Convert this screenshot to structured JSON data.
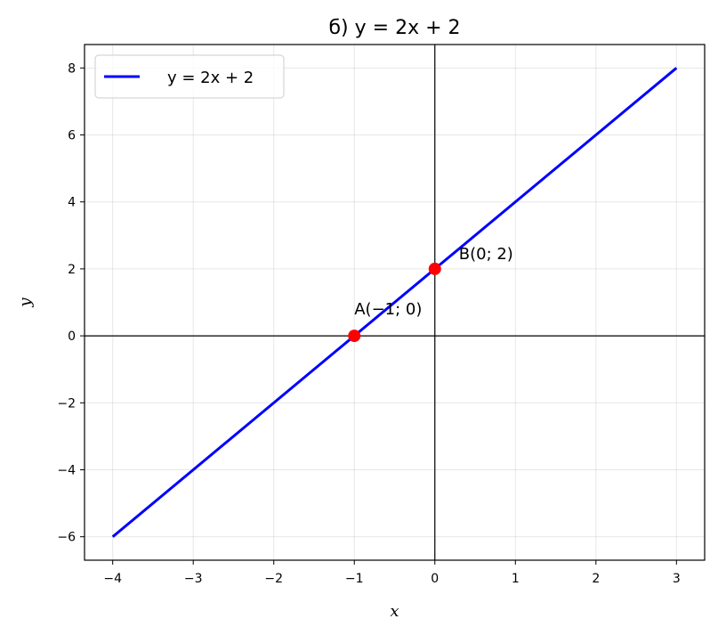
{
  "chart_data": {
    "type": "line",
    "title": "б) y = 2x + 2",
    "xlabel": "x",
    "ylabel": "y",
    "xlim": [
      -4.35,
      3.35
    ],
    "ylim": [
      -6.7,
      8.7
    ],
    "xticks": [
      -4,
      -3,
      -2,
      -1,
      0,
      1,
      2,
      3
    ],
    "yticks": [
      -6,
      -4,
      -2,
      0,
      2,
      4,
      6,
      8
    ],
    "xtick_labels": [
      "−4",
      "−3",
      "−2",
      "−1",
      "0",
      "1",
      "2",
      "3"
    ],
    "ytick_labels": [
      "−6",
      "−4",
      "−2",
      "0",
      "2",
      "4",
      "6",
      "8"
    ],
    "grid": true,
    "legend_position": "top-left",
    "series": [
      {
        "name": "y = 2x + 2",
        "x": [
          -4,
          3
        ],
        "y": [
          -6,
          8
        ],
        "color": "#0000ff"
      }
    ],
    "points": [
      {
        "x": -1,
        "y": 0,
        "label": "A(−1; 0)",
        "color": "#ff0000"
      },
      {
        "x": 0,
        "y": 2,
        "label": "B(0; 2)",
        "color": "#ff0000"
      }
    ]
  }
}
